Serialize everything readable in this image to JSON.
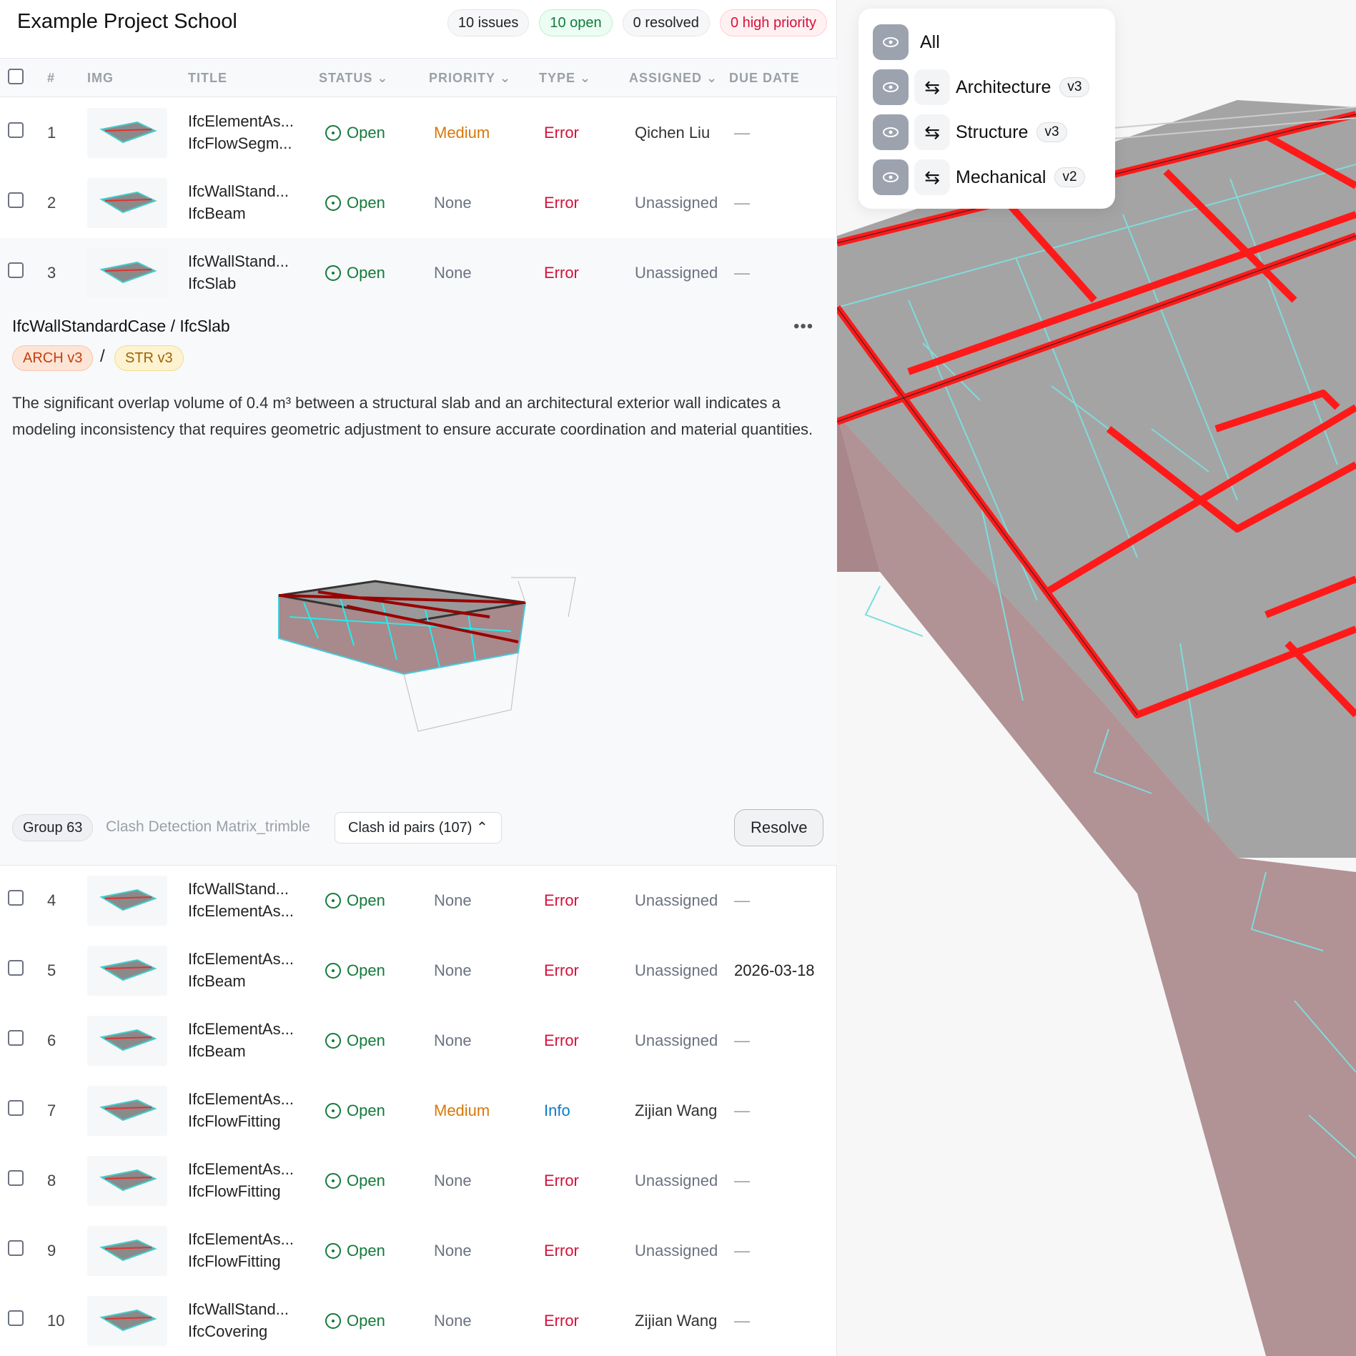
{
  "header": {
    "title": "Example Project School",
    "pills": [
      "10 issues",
      "10 open",
      "0 resolved",
      "0 high priority"
    ]
  },
  "columns": {
    "num": "#",
    "img": "IMG",
    "title": "TITLE",
    "status": "STATUS",
    "priority": "PRIORITY",
    "type": "TYPE",
    "assigned": "ASSIGNED",
    "due": "DUE DATE"
  },
  "rows": [
    {
      "num": "1",
      "t1": "IfcElementAs...",
      "t2": "IfcFlowSegm...",
      "status": "Open",
      "priority": "Medium",
      "type": "Error",
      "assignee": "Qichen Liu",
      "due": "—"
    },
    {
      "num": "2",
      "t1": "IfcWallStand...",
      "t2": "IfcBeam",
      "status": "Open",
      "priority": "None",
      "type": "Error",
      "assignee": "Unassigned",
      "due": "—"
    },
    {
      "num": "3",
      "t1": "IfcWallStand...",
      "t2": "IfcSlab",
      "status": "Open",
      "priority": "None",
      "type": "Error",
      "assignee": "Unassigned",
      "due": "—"
    },
    {
      "num": "4",
      "t1": "IfcWallStand...",
      "t2": "IfcElementAs...",
      "status": "Open",
      "priority": "None",
      "type": "Error",
      "assignee": "Unassigned",
      "due": "—"
    },
    {
      "num": "5",
      "t1": "IfcElementAs...",
      "t2": "IfcBeam",
      "status": "Open",
      "priority": "None",
      "type": "Error",
      "assignee": "Unassigned",
      "due": "2026-03-18"
    },
    {
      "num": "6",
      "t1": "IfcElementAs...",
      "t2": "IfcBeam",
      "status": "Open",
      "priority": "None",
      "type": "Error",
      "assignee": "Unassigned",
      "due": "—"
    },
    {
      "num": "7",
      "t1": "IfcElementAs...",
      "t2": "IfcFlowFitting",
      "status": "Open",
      "priority": "Medium",
      "type": "Info",
      "assignee": "Zijian Wang",
      "due": "—"
    },
    {
      "num": "8",
      "t1": "IfcElementAs...",
      "t2": "IfcFlowFitting",
      "status": "Open",
      "priority": "None",
      "type": "Error",
      "assignee": "Unassigned",
      "due": "—"
    },
    {
      "num": "9",
      "t1": "IfcElementAs...",
      "t2": "IfcFlowFitting",
      "status": "Open",
      "priority": "None",
      "type": "Error",
      "assignee": "Unassigned",
      "due": "—"
    },
    {
      "num": "10",
      "t1": "IfcWallStand...",
      "t2": "IfcCovering",
      "status": "Open",
      "priority": "None",
      "type": "Error",
      "assignee": "Zijian Wang",
      "due": "—"
    }
  ],
  "detail": {
    "title": "IfcWallStandardCase / IfcSlab",
    "more": "•••",
    "badge_a": "ARCH v3",
    "separator": "/",
    "badge_b": "STR v3",
    "description": "The significant overlap volume of 0.4 m³ between a structural slab and an architectural exterior wall indicates a modeling inconsistency that requires geometric adjustment to ensure accurate coordination and material quantities.",
    "group": "Group 63",
    "source": "Clash Detection Matrix_trimble",
    "pairs": "Clash id pairs (107)",
    "pairs_icon": "chevron-up-icon",
    "resolve": "Resolve"
  },
  "layers": [
    {
      "name": "All"
    },
    {
      "name": "Architecture",
      "version": "v3"
    },
    {
      "name": "Structure",
      "version": "v3"
    },
    {
      "name": "Mechanical",
      "version": "v2"
    }
  ],
  "colors": {
    "open": "#137a3a",
    "error": "#d4123a",
    "medium": "#d97706",
    "info": "#0b7cc7",
    "clash": "#ff1a1a",
    "wire": "#7fdcdc"
  }
}
